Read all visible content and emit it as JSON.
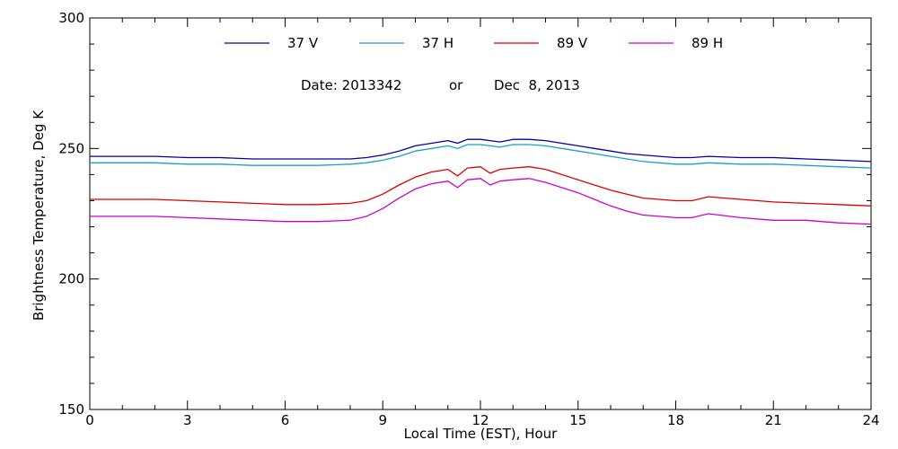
{
  "chart_data": {
    "type": "line",
    "title": "",
    "annotation": {
      "date_label": "Date: 2013342",
      "or_label": "or",
      "date_text": "Dec  8, 2013"
    },
    "xlabel": "Local Time (EST), Hour",
    "ylabel": "Brightness Temperature, Deg K",
    "xlim": [
      0,
      24
    ],
    "ylim": [
      150,
      300
    ],
    "xticks": [
      0,
      3,
      6,
      9,
      12,
      15,
      18,
      21,
      24
    ],
    "xtick_labels": [
      "0",
      "3",
      "6",
      "9",
      "12",
      "15",
      "18",
      "21",
      "24"
    ],
    "yticks": [
      150,
      200,
      250,
      300
    ],
    "ytick_labels": [
      "150",
      "200",
      "250",
      "300"
    ],
    "x_minor_step": 1,
    "y_minor_step": 10,
    "grid": false,
    "legend_position": "top",
    "series": [
      {
        "name": "37 V",
        "color": "#0000aa",
        "x": [
          0,
          1,
          2,
          3,
          4,
          5,
          6,
          7,
          8,
          8.5,
          9,
          9.5,
          10,
          10.5,
          11,
          11.3,
          11.6,
          12,
          12.3,
          12.6,
          13,
          13.5,
          14,
          14.5,
          15,
          15.5,
          16,
          16.5,
          17,
          17.5,
          18,
          18.5,
          19,
          20,
          21,
          22,
          23,
          24
        ],
        "values": [
          247,
          247,
          247,
          246.5,
          246.5,
          246,
          246,
          246,
          246,
          246.5,
          247.5,
          249,
          251,
          252,
          253,
          252,
          253.5,
          253.5,
          253,
          252.5,
          253.5,
          253.5,
          253,
          252,
          251,
          250,
          249,
          248,
          247.5,
          247,
          246.5,
          246.5,
          247,
          246.5,
          246.5,
          246,
          245.5,
          245
        ]
      },
      {
        "name": "37 H",
        "color": "#1a9fcc",
        "x": [
          0,
          1,
          2,
          3,
          4,
          5,
          6,
          7,
          8,
          8.5,
          9,
          9.5,
          10,
          10.5,
          11,
          11.3,
          11.6,
          12,
          12.3,
          12.6,
          13,
          13.5,
          14,
          14.5,
          15,
          15.5,
          16,
          16.5,
          17,
          17.5,
          18,
          18.5,
          19,
          20,
          21,
          22,
          23,
          24
        ],
        "values": [
          244.5,
          244.5,
          244.5,
          244,
          244,
          243.5,
          243.5,
          243.5,
          244,
          244.5,
          245.5,
          247,
          249,
          250,
          251,
          250,
          251.5,
          251.5,
          251,
          250.5,
          251.5,
          251.5,
          251,
          250,
          249,
          248,
          247,
          246,
          245,
          244.5,
          244,
          244,
          244.5,
          244,
          244,
          243.5,
          243,
          242.5
        ]
      },
      {
        "name": "89 V",
        "color": "#dd0000",
        "x": [
          0,
          1,
          2,
          3,
          4,
          5,
          6,
          7,
          8,
          8.5,
          9,
          9.5,
          10,
          10.5,
          11,
          11.3,
          11.6,
          12,
          12.3,
          12.6,
          13,
          13.5,
          14,
          14.5,
          15,
          15.5,
          16,
          16.5,
          17,
          17.5,
          18,
          18.5,
          19,
          20,
          21,
          22,
          23,
          24
        ],
        "values": [
          230.5,
          230.5,
          230.5,
          230,
          229.5,
          229,
          228.5,
          228.5,
          229,
          230,
          232.5,
          236,
          239,
          241,
          242,
          239.5,
          242.5,
          243,
          240.5,
          242,
          242.5,
          243,
          242,
          240,
          238,
          236,
          234,
          232.5,
          231,
          230.5,
          230,
          230,
          231.5,
          230.5,
          229.5,
          229,
          228.5,
          228
        ]
      },
      {
        "name": "89 H",
        "color": "#cc00cc",
        "x": [
          0,
          1,
          2,
          3,
          4,
          5,
          6,
          7,
          8,
          8.5,
          9,
          9.5,
          10,
          10.5,
          11,
          11.3,
          11.6,
          12,
          12.3,
          12.6,
          13,
          13.5,
          14,
          14.5,
          15,
          15.5,
          16,
          16.5,
          17,
          17.5,
          18,
          18.5,
          19,
          20,
          21,
          22,
          23,
          24
        ],
        "values": [
          224,
          224,
          224,
          223.5,
          223,
          222.5,
          222,
          222,
          222.5,
          224,
          227,
          231,
          234.5,
          236.5,
          237.5,
          235,
          238,
          238.5,
          236,
          237.5,
          238,
          238.5,
          237,
          235,
          233,
          230.5,
          228,
          226,
          224.5,
          224,
          223.5,
          223.5,
          225,
          223.5,
          222.5,
          222.5,
          221.5,
          221
        ]
      }
    ]
  }
}
